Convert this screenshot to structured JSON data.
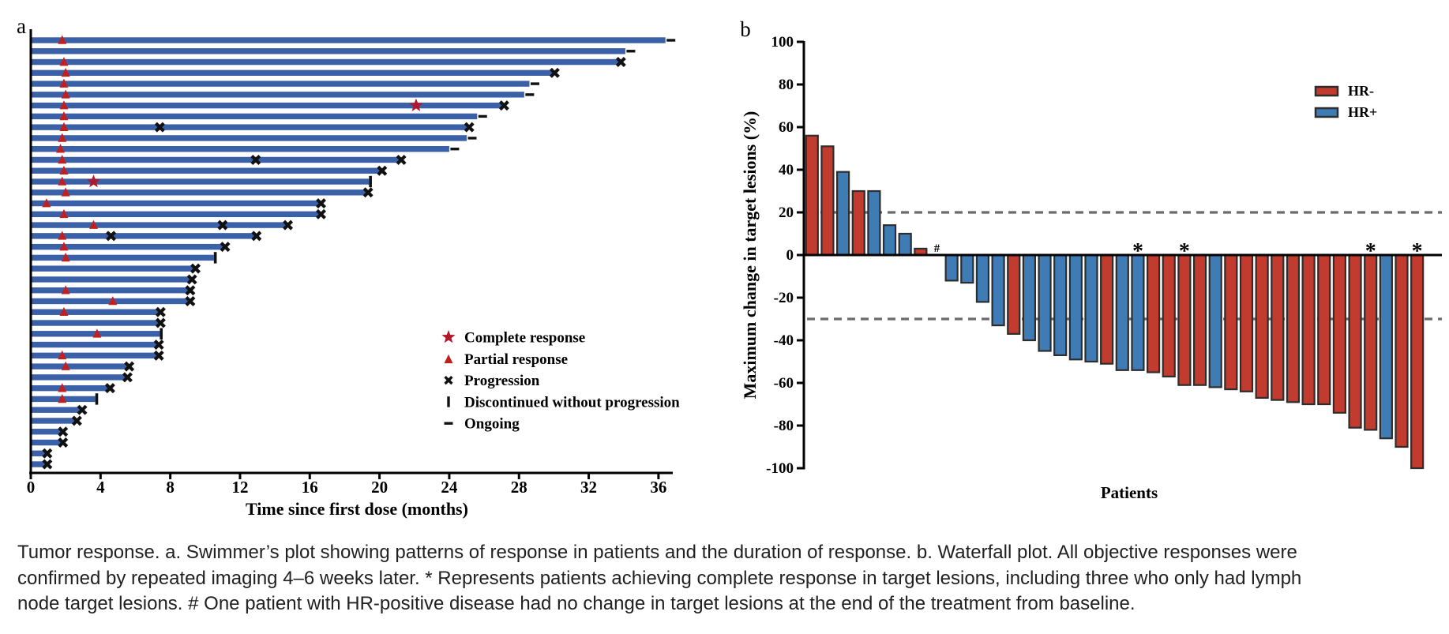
{
  "figure": {
    "panel_a_label": "a",
    "panel_b_label": "b"
  },
  "colors": {
    "swimmer_bar_blue": "#3a61a8",
    "waterfall_red": "#c13b2e",
    "waterfall_blue": "#3f7cb6",
    "marker_red": "#c02020",
    "star_red": "#b2182b",
    "marker_black": "#111111",
    "axis_black": "#000000",
    "dashed_gray": "#6b6b6b",
    "bar_outline": "#2d2d2d",
    "caption_text": "#212121"
  },
  "chart_data": [
    {
      "type": "swimmer",
      "panel": "a",
      "xlabel": "Time since first dose (months)",
      "x_ticks": [
        0,
        4,
        8,
        12,
        16,
        20,
        24,
        28,
        32,
        36
      ],
      "xlim": [
        0,
        38
      ],
      "grid": false,
      "legend_position": "lower-right-inside",
      "legend": [
        {
          "marker": "star",
          "label": "Complete response"
        },
        {
          "marker": "triangle",
          "label": "Partial response"
        },
        {
          "marker": "x",
          "label": "Progression"
        },
        {
          "marker": "vbar",
          "label": "Discontinued without progression"
        },
        {
          "marker": "dash",
          "label": "Ongoing"
        }
      ],
      "patients": [
        {
          "duration": 36.4,
          "end": "ongoing",
          "pr": 1.8
        },
        {
          "duration": 34.1,
          "end": "ongoing"
        },
        {
          "duration": 33.8,
          "end": "progression",
          "pr": 1.9
        },
        {
          "duration": 30.0,
          "end": "progression",
          "pr": 2.0
        },
        {
          "duration": 28.6,
          "end": "ongoing",
          "pr": 1.9
        },
        {
          "duration": 28.3,
          "end": "ongoing",
          "pr": 2.0
        },
        {
          "duration": 27.1,
          "end": "progression",
          "pr": 1.9,
          "cr": 22.1
        },
        {
          "duration": 25.6,
          "end": "ongoing",
          "pr": 1.9
        },
        {
          "duration": 25.1,
          "end": "progression",
          "pr": 1.9,
          "progression_marks": [
            7.4
          ]
        },
        {
          "duration": 25.0,
          "end": "ongoing",
          "pr": 1.8
        },
        {
          "duration": 24.0,
          "end": "ongoing",
          "pr": 1.7
        },
        {
          "duration": 21.2,
          "end": "progression",
          "pr": 1.8,
          "progression_marks": [
            12.9
          ]
        },
        {
          "duration": 20.1,
          "end": "progression",
          "pr": 1.9
        },
        {
          "duration": 19.4,
          "end": "discontinued",
          "pr": 1.8,
          "cr": 3.6
        },
        {
          "duration": 19.3,
          "end": "progression",
          "pr": 2.0
        },
        {
          "duration": 16.6,
          "end": "progression",
          "pr": 0.9
        },
        {
          "duration": 16.6,
          "end": "progression",
          "pr": 1.9
        },
        {
          "duration": 14.7,
          "end": "progression",
          "pr": 3.6,
          "progression_marks": [
            11.0
          ]
        },
        {
          "duration": 12.9,
          "end": "progression",
          "pr": 1.8,
          "progression_marks": [
            4.6
          ]
        },
        {
          "duration": 11.1,
          "end": "progression",
          "pr": 1.9
        },
        {
          "duration": 10.5,
          "end": "discontinued",
          "pr": 2.0
        },
        {
          "duration": 9.4,
          "end": "progression"
        },
        {
          "duration": 9.2,
          "end": "progression"
        },
        {
          "duration": 9.1,
          "end": "progression",
          "pr": 2.0
        },
        {
          "duration": 9.1,
          "end": "progression",
          "pr": 4.7
        },
        {
          "duration": 7.4,
          "end": "progression",
          "pr": 1.9
        },
        {
          "duration": 7.4,
          "end": "progression"
        },
        {
          "duration": 7.4,
          "end": "discontinued",
          "pr": 3.8
        },
        {
          "duration": 7.3,
          "end": "progression"
        },
        {
          "duration": 7.3,
          "end": "progression",
          "pr": 1.8
        },
        {
          "duration": 5.6,
          "end": "progression",
          "pr": 2.0
        },
        {
          "duration": 5.5,
          "end": "progression"
        },
        {
          "duration": 4.5,
          "end": "progression",
          "pr": 1.8
        },
        {
          "duration": 3.7,
          "end": "discontinued",
          "pr": 1.8
        },
        {
          "duration": 2.9,
          "end": "progression"
        },
        {
          "duration": 2.6,
          "end": "progression"
        },
        {
          "duration": 1.8,
          "end": "progression"
        },
        {
          "duration": 1.8,
          "end": "progression"
        },
        {
          "duration": 0.9,
          "end": "progression"
        },
        {
          "duration": 0.9,
          "end": "progression"
        }
      ]
    },
    {
      "type": "bar",
      "panel": "b",
      "title": "",
      "xlabel": "Patients",
      "ylabel": "Maximum change in target lesions (%)",
      "ylim": [
        -100,
        100
      ],
      "y_ticks": [
        100,
        80,
        60,
        40,
        20,
        0,
        -20,
        -40,
        -60,
        -80,
        -100
      ],
      "reference_lines": [
        20,
        -30
      ],
      "grid": false,
      "legend_position": "upper-right-inside",
      "legend": [
        {
          "label": "HR-",
          "color": "#c13b2e"
        },
        {
          "label": "HR+",
          "color": "#3f7cb6"
        }
      ],
      "bars": [
        {
          "value": 56,
          "group": "HR-"
        },
        {
          "value": 51,
          "group": "HR-"
        },
        {
          "value": 39,
          "group": "HR+"
        },
        {
          "value": 30,
          "group": "HR-"
        },
        {
          "value": 30,
          "group": "HR+"
        },
        {
          "value": 14,
          "group": "HR+"
        },
        {
          "value": 10,
          "group": "HR+"
        },
        {
          "value": 3,
          "group": "HR-"
        },
        {
          "value": 0,
          "group": "HR+",
          "annotation": "#"
        },
        {
          "value": -12,
          "group": "HR+"
        },
        {
          "value": -13,
          "group": "HR+"
        },
        {
          "value": -22,
          "group": "HR+"
        },
        {
          "value": -33,
          "group": "HR+"
        },
        {
          "value": -37,
          "group": "HR-"
        },
        {
          "value": -40,
          "group": "HR+"
        },
        {
          "value": -45,
          "group": "HR+"
        },
        {
          "value": -47,
          "group": "HR+"
        },
        {
          "value": -49,
          "group": "HR+"
        },
        {
          "value": -50,
          "group": "HR+"
        },
        {
          "value": -51,
          "group": "HR-"
        },
        {
          "value": -54,
          "group": "HR+"
        },
        {
          "value": -54,
          "group": "HR+",
          "annotation": "*"
        },
        {
          "value": -55,
          "group": "HR-"
        },
        {
          "value": -57,
          "group": "HR-"
        },
        {
          "value": -61,
          "group": "HR-",
          "annotation": "*"
        },
        {
          "value": -61,
          "group": "HR-"
        },
        {
          "value": -62,
          "group": "HR+"
        },
        {
          "value": -63,
          "group": "HR-"
        },
        {
          "value": -64,
          "group": "HR-"
        },
        {
          "value": -67,
          "group": "HR-"
        },
        {
          "value": -68,
          "group": "HR-"
        },
        {
          "value": -69,
          "group": "HR-"
        },
        {
          "value": -70,
          "group": "HR-"
        },
        {
          "value": -70,
          "group": "HR-"
        },
        {
          "value": -74,
          "group": "HR-"
        },
        {
          "value": -81,
          "group": "HR-"
        },
        {
          "value": -82,
          "group": "HR-",
          "annotation": "*"
        },
        {
          "value": -86,
          "group": "HR+"
        },
        {
          "value": -90,
          "group": "HR-"
        },
        {
          "value": -100,
          "group": "HR-",
          "annotation": "*"
        }
      ]
    }
  ],
  "caption": {
    "lines": [
      "Tumor response. a. Swimmer’s plot showing patterns of response in patients and the duration of response. b. Waterfall plot. All objective responses were",
      "confirmed by repeated imaging 4–6 weeks later. * Represents patients achieving complete response in target lesions, including three who only had lymph",
      "node target lesions. # One patient with HR-positive disease had no change in target lesions at the end of the treatment from baseline."
    ]
  }
}
